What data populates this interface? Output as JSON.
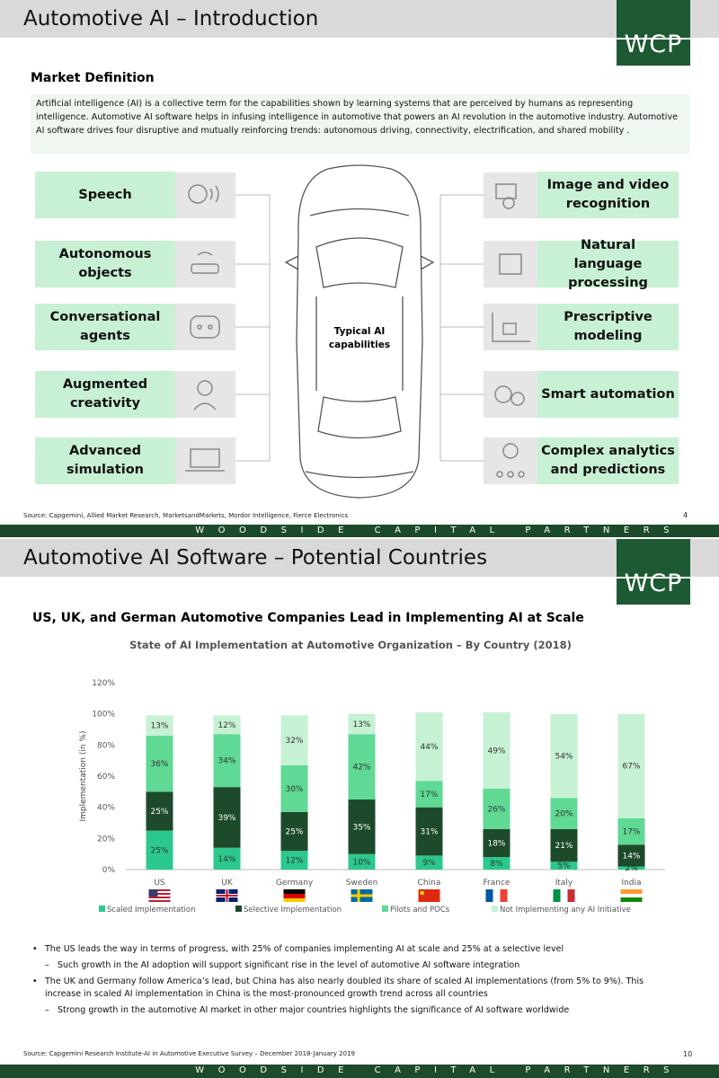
{
  "slide1": {
    "title": "Automotive AI – Introduction",
    "logo": "WCP",
    "section": "Market Definition",
    "definition": "Artificial intelligence (AI) is a collective term for the capabilities shown by learning systems that are perceived by humans as representing intelligence. Automotive AI software helps in infusing intelligence in automotive that powers an AI revolution in the automotive industry. Automotive AI software drives four disruptive and mutually reinforcing trends: autonomous driving, connectivity, electrification, and shared mobility .",
    "left": [
      "Speech",
      "Autonomous objects",
      "Conversational agents",
      "Augmented creativity",
      "Advanced simulation"
    ],
    "right": [
      "Image and video recognition",
      "Natural language processing",
      "Prescriptive modeling",
      "Smart automation",
      "Complex analytics and predictions"
    ],
    "center": "Typical AI capabilities",
    "source": "Source: Capgemini, Allied Market Research, MarketsandMarkets, Mordor Intelligence, Fierce Electronics",
    "page": 4,
    "footer": "WOODSIDE CAPITAL PARTNERS"
  },
  "slide2": {
    "title": "Automotive AI Software – Potential Countries",
    "logo": "WCP",
    "heading": "US, UK, and German Automotive Companies Lead in Implementing AI at Scale",
    "bullets": [
      {
        "text": "The US leads the way in terms of progress, with 25% of companies implementing AI at scale and 25% at a selective level",
        "sub": "Such growth in the AI adoption will support significant rise in the level of automotive AI software integration"
      },
      {
        "text": "The UK and Germany follow America’s lead, but China has also nearly doubled its share of scaled AI implementations (from 5% to 9%). This increase in scaled AI implementation in China is the most-pronounced growth trend across all countries",
        "sub": "Strong growth in the automotive AI market in other major countries highlights the significance of AI software worldwide"
      }
    ],
    "source": "Source: Capgemini Research Institute-AI in Automotive Executive Survey – December 2018-January 2019",
    "page": 10,
    "footer": "WOODSIDE CAPITAL PARTNERS"
  },
  "chart_data": {
    "type": "stacked_bar",
    "title": "State of AI Implementation at Automotive Organization – By Country (2018)",
    "y_label": "Implementation (in %)",
    "categories": [
      "US",
      "UK",
      "Germany",
      "Sweden",
      "China",
      "France",
      "Italy",
      "India"
    ],
    "series": [
      {
        "name": "Scaled Implementation",
        "color": "#2bc98d",
        "values": [
          25,
          14,
          12,
          10,
          9,
          8,
          5,
          2
        ],
        "value_labels": [
          "25%",
          "14%",
          "12%",
          "10%",
          "9%",
          "8%",
          "5%",
          "2%"
        ]
      },
      {
        "name": "Selective Implementation",
        "color": "#1d4a2a",
        "values": [
          25,
          39,
          25,
          35,
          31,
          18,
          21,
          14
        ],
        "value_labels": [
          "25%",
          "39%",
          "25%",
          "35%",
          "31%",
          "18%",
          "21%",
          "14%"
        ]
      },
      {
        "name": "Pilots and POCs",
        "color": "#5fd994",
        "values": [
          36,
          34,
          30,
          42,
          17,
          26,
          20,
          17
        ],
        "value_labels": [
          "36%",
          "34%",
          "30%",
          "42%",
          "17%",
          "26%",
          "20%",
          "17%"
        ]
      },
      {
        "name": "Not Implementing any AI Initiative",
        "color": "#c6f1d3",
        "values": [
          13,
          12,
          32,
          13,
          44,
          49,
          54,
          67
        ],
        "value_labels": [
          "13%",
          "12%",
          "32%",
          "13%",
          "44%",
          "49%",
          "54%",
          "67%"
        ]
      }
    ],
    "ylim": [
      0,
      120
    ],
    "yticks": [
      {
        "value": 0,
        "label": "0%"
      },
      {
        "value": 20,
        "label": "20%"
      },
      {
        "value": 40,
        "label": "40%"
      },
      {
        "value": 60,
        "label": "60%"
      },
      {
        "value": 80,
        "label": "80%"
      },
      {
        "value": 100,
        "label": "100%"
      },
      {
        "value": 120,
        "label": "120%"
      }
    ],
    "grid": false,
    "legend": "bottom"
  }
}
